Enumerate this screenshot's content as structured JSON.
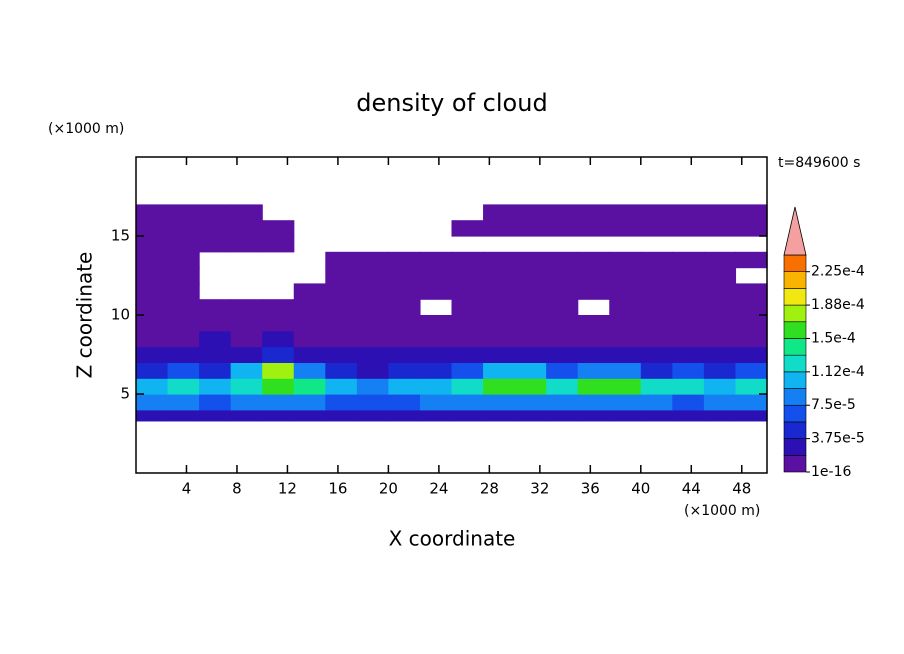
{
  "chart_data": {
    "type": "contour",
    "title": "density of cloud",
    "time_label": "t=849600 s",
    "x_label": "X coordinate",
    "y_label": "Z coordinate",
    "x_unit": "(×1000 m)",
    "y_unit": "(×1000 m)",
    "xlim": [
      0,
      50
    ],
    "ylim": [
      0,
      20
    ],
    "xticks": [
      4,
      8,
      12,
      16,
      20,
      24,
      28,
      32,
      36,
      40,
      44,
      48
    ],
    "yticks": [
      5,
      10,
      15
    ],
    "x_bins": [
      0,
      2.5,
      5,
      7.5,
      10,
      12.5,
      15,
      17.5,
      20,
      22.5,
      25,
      27.5,
      30,
      32.5,
      35,
      37.5,
      40,
      42.5,
      45,
      47.5,
      50
    ],
    "z_bins": [
      3.3,
      4,
      5,
      6,
      7,
      8,
      9,
      10,
      11,
      12,
      13,
      14,
      15,
      16,
      17
    ],
    "z": [
      [
        3e-05,
        3e-05,
        2.5e-05,
        3e-05,
        3e-05,
        3e-05,
        2.5e-05,
        2.5e-05,
        3e-05,
        3e-05,
        3e-05,
        3e-05,
        3e-05,
        3e-05,
        3e-05,
        3e-05,
        3e-05,
        3e-05,
        3e-05,
        3e-05
      ],
      [
        8e-05,
        8e-05,
        7e-05,
        8e-05,
        9e-05,
        8e-05,
        7e-05,
        6e-05,
        7e-05,
        8e-05,
        8e-05,
        8e-05,
        8e-05,
        8e-05,
        8e-05,
        8e-05,
        8e-05,
        7e-05,
        8e-05,
        8e-05
      ],
      [
        0.00011,
        0.00012,
        0.0001,
        0.00013,
        0.00016,
        0.00014,
        0.0001,
        9e-05,
        0.00011,
        0.0001,
        0.00013,
        0.00015,
        0.00015,
        0.00013,
        0.00015,
        0.00015,
        0.00013,
        0.00012,
        0.00011,
        0.00012
      ],
      [
        5e-05,
        6e-05,
        4e-05,
        0.00011,
        0.00017,
        8e-05,
        4e-05,
        3e-05,
        5e-05,
        4e-05,
        7e-05,
        0.00011,
        0.0001,
        6e-05,
        9e-05,
        8e-05,
        5e-05,
        6e-05,
        5e-05,
        6e-05
      ],
      [
        2.5e-05,
        3e-05,
        2e-05,
        3e-05,
        4e-05,
        3e-05,
        2e-05,
        2.5e-05,
        2e-05,
        2.5e-05,
        3e-05,
        3e-05,
        3e-05,
        2.5e-05,
        3e-05,
        2.5e-05,
        2.5e-05,
        3e-05,
        2.5e-05,
        3e-05
      ],
      [
        1.5e-05,
        1.5e-05,
        2e-05,
        1.5e-05,
        2e-05,
        1.5e-05,
        1e-05,
        1.5e-05,
        1.5e-05,
        1.5e-05,
        1.5e-05,
        1.5e-05,
        1.5e-05,
        1e-05,
        1.5e-05,
        1.5e-05,
        1.5e-05,
        1.5e-05,
        1.5e-05,
        1.5e-05
      ],
      [
        8e-06,
        8e-06,
        8e-06,
        8e-06,
        8e-06,
        8e-06,
        8e-06,
        8e-06,
        8e-06,
        8e-06,
        8e-06,
        8e-06,
        8e-06,
        8e-06,
        8e-06,
        8e-06,
        8e-06,
        8e-06,
        8e-06,
        8e-06
      ],
      [
        4e-06,
        4e-06,
        4e-06,
        4e-06,
        4e-06,
        4e-06,
        4e-06,
        4e-06,
        4e-06,
        0,
        4e-06,
        4e-06,
        4e-06,
        4e-06,
        0,
        4e-06,
        4e-06,
        4e-06,
        4e-06,
        4e-06
      ],
      [
        2e-06,
        2e-06,
        0,
        0,
        0,
        2e-06,
        2e-06,
        2e-06,
        2e-06,
        2e-06,
        2e-06,
        2e-06,
        2e-06,
        2e-06,
        2e-06,
        2e-06,
        2e-06,
        2e-06,
        2e-06,
        2e-06
      ],
      [
        1e-06,
        1e-06,
        0,
        0,
        0,
        0,
        1e-06,
        1e-06,
        1e-06,
        1e-06,
        1e-06,
        1e-06,
        1e-06,
        1e-06,
        1e-06,
        1e-06,
        1e-06,
        1e-06,
        1e-06,
        0
      ],
      [
        1e-06,
        1e-06,
        0,
        0,
        0,
        0,
        1e-06,
        1e-06,
        1e-06,
        1e-06,
        1e-06,
        1e-06,
        1e-06,
        1e-06,
        1e-06,
        1e-06,
        1e-06,
        1e-06,
        1e-06,
        1e-06
      ],
      [
        1e-06,
        1e-06,
        1e-06,
        1e-06,
        1e-06,
        0,
        0,
        0,
        0,
        0,
        0,
        0,
        0,
        0,
        0,
        0,
        0,
        0,
        0,
        0
      ],
      [
        1e-06,
        1e-06,
        1e-06,
        1e-06,
        1e-06,
        0,
        0,
        0,
        0,
        0,
        1e-06,
        1e-06,
        1e-06,
        1e-06,
        1e-06,
        1e-06,
        1e-06,
        1e-06,
        1e-06,
        1e-06
      ],
      [
        1e-06,
        1e-06,
        1e-06,
        1e-06,
        0,
        0,
        0,
        0,
        0,
        0,
        0,
        1e-06,
        1e-06,
        1e-06,
        1e-06,
        1e-06,
        1e-06,
        1e-06,
        1e-06,
        1e-06
      ]
    ],
    "levels": [
      1e-16,
      1.875e-05,
      3.75e-05,
      5.625e-05,
      7.5e-05,
      9.375e-05,
      0.0001125,
      0.00013125,
      0.00015,
      0.00016875,
      0.0001875,
      0.00020625,
      0.000225,
      0.00024375
    ],
    "colors": [
      "#5a10a0",
      "#2c10b4",
      "#1a28d0",
      "#1450ec",
      "#1480f4",
      "#10b4f0",
      "#10dcc8",
      "#10e888",
      "#30e020",
      "#a0f010",
      "#f0e810",
      "#f8b400",
      "#f87000",
      "#f02c10"
    ],
    "extend_color": "#f4a0a0",
    "colorbar_ticks": [
      {
        "value": 1e-16,
        "label": "1e-16"
      },
      {
        "value": 3.75e-05,
        "label": "3.75e-5"
      },
      {
        "value": 7.5e-05,
        "label": "7.5e-5"
      },
      {
        "value": 0.0001125,
        "label": "1.12e-4"
      },
      {
        "value": 0.00015,
        "label": "1.5e-4"
      },
      {
        "value": 0.0001875,
        "label": "1.88e-4"
      },
      {
        "value": 0.000225,
        "label": "2.25e-4"
      }
    ]
  }
}
